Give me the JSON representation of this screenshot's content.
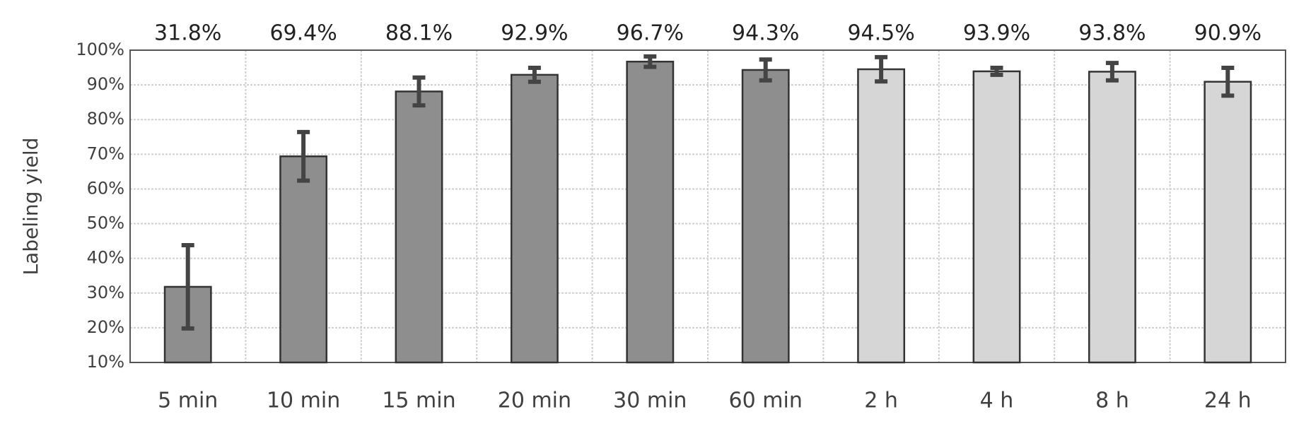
{
  "chart_data": {
    "type": "bar",
    "y_label": "Labeling yield",
    "categories": [
      "5 min",
      "10 min",
      "15 min",
      "20 min",
      "30 min",
      "60 min",
      "2 h",
      "4 h",
      "8 h",
      "24 h"
    ],
    "values": [
      31.8,
      69.4,
      88.1,
      92.9,
      96.7,
      94.3,
      94.5,
      93.9,
      93.8,
      90.9
    ],
    "value_labels": [
      "31.8%",
      "69.4%",
      "88.1%",
      "92.9%",
      "96.7%",
      "94.3%",
      "94.5%",
      "93.9%",
      "93.8%",
      "90.9%"
    ],
    "errors": [
      12,
      7,
      4,
      2,
      1.5,
      3,
      3.5,
      1,
      2.5,
      4
    ],
    "colors": [
      "#8e8e8e",
      "#8e8e8e",
      "#8e8e8e",
      "#8e8e8e",
      "#8e8e8e",
      "#8e8e8e",
      "#d6d6d6",
      "#d6d6d6",
      "#d6d6d6",
      "#d6d6d6"
    ],
    "ylim": [
      10,
      100
    ],
    "yticks": [
      {
        "value": 10,
        "label": "10%"
      },
      {
        "value": 20,
        "label": "20%"
      },
      {
        "value": 30,
        "label": "30%"
      },
      {
        "value": 40,
        "label": "40%"
      },
      {
        "value": 50,
        "label": "50%"
      },
      {
        "value": 60,
        "label": "60%"
      },
      {
        "value": 70,
        "label": "70%"
      },
      {
        "value": 80,
        "label": "80%"
      },
      {
        "value": 90,
        "label": "90%"
      },
      {
        "value": 100,
        "label": "100%"
      }
    ],
    "grid": true
  }
}
